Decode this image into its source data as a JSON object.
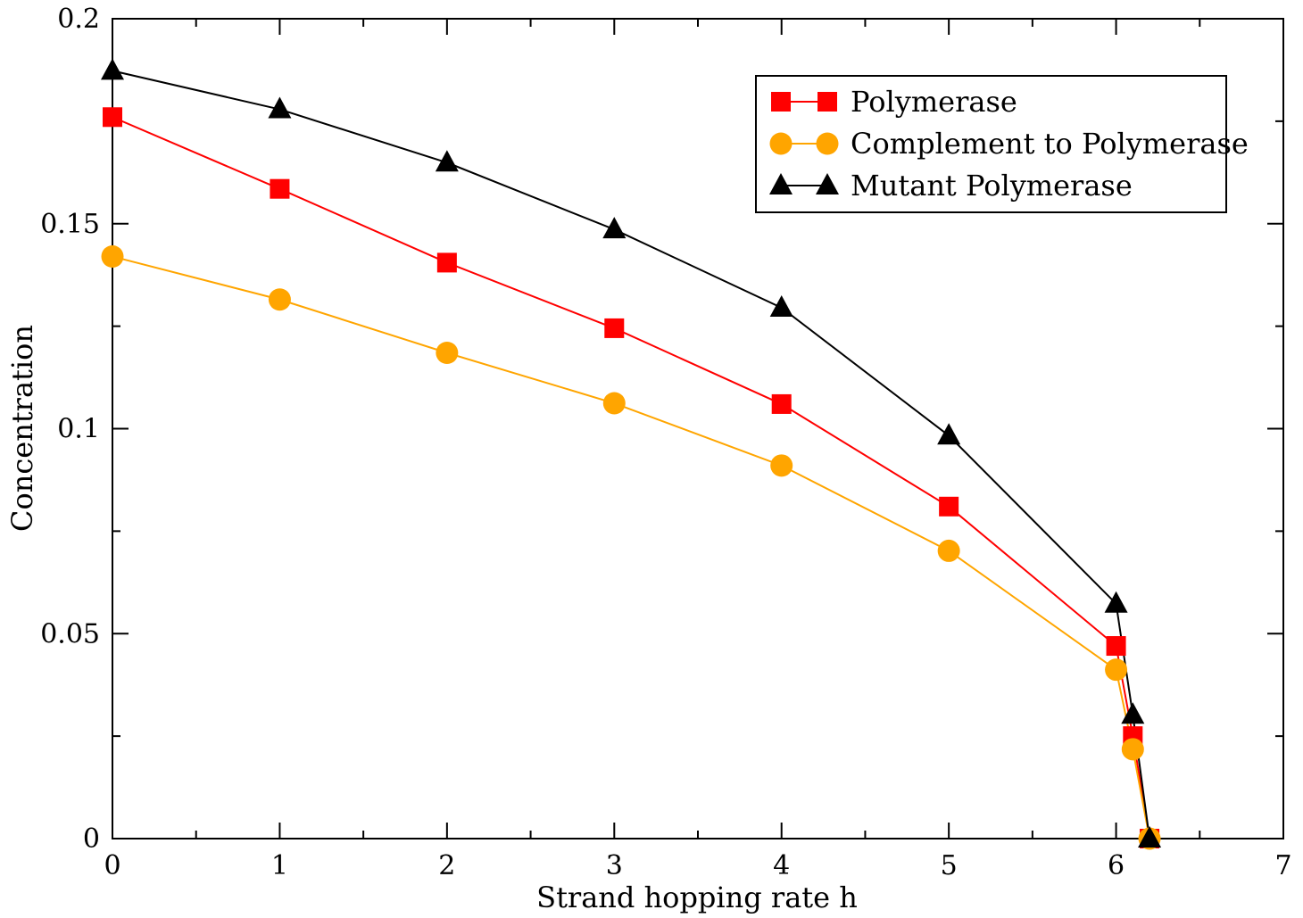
{
  "chart_data": {
    "type": "line",
    "title": "",
    "xlabel": "Strand hopping rate h",
    "ylabel": "Concentration",
    "xlim": [
      0,
      7
    ],
    "ylim": [
      0,
      0.2
    ],
    "x_ticks": [
      0,
      1,
      2,
      3,
      4,
      5,
      6,
      7
    ],
    "x_tick_labels": [
      "0",
      "1",
      "2",
      "3",
      "4",
      "5",
      "6",
      "7"
    ],
    "y_ticks": [
      0,
      0.05,
      0.1,
      0.15,
      0.2
    ],
    "y_tick_labels": [
      "0",
      "0.05",
      "0.1",
      "0.15",
      "0.2"
    ],
    "grid": false,
    "legend_position": "top-right",
    "series": [
      {
        "name": "Polymerase",
        "color": "#ff0000",
        "marker": "square",
        "x": [
          0,
          1,
          2,
          3,
          4,
          5,
          6,
          6.1,
          6.2
        ],
        "y": [
          0.176,
          0.1585,
          0.1405,
          0.1245,
          0.106,
          0.081,
          0.047,
          0.025,
          0.0
        ]
      },
      {
        "name": "Complement to Polymerase",
        "color": "#ffa500",
        "marker": "circle",
        "x": [
          0,
          1,
          2,
          3,
          4,
          5,
          6,
          6.1,
          6.2
        ],
        "y": [
          0.142,
          0.1315,
          0.1185,
          0.1062,
          0.091,
          0.0702,
          0.0412,
          0.0218,
          0.0
        ]
      },
      {
        "name": "Mutant Polymerase",
        "color": "#000000",
        "marker": "triangle",
        "x": [
          0,
          1,
          2,
          3,
          4,
          5,
          6,
          6.1,
          6.2
        ],
        "y": [
          0.1873,
          0.1779,
          0.1649,
          0.1486,
          0.1295,
          0.0983,
          0.0573,
          0.0302,
          0.0
        ]
      }
    ]
  }
}
